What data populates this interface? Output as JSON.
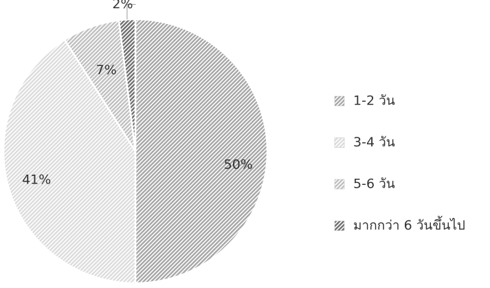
{
  "chart_data": {
    "type": "pie",
    "categories": [
      "1-2 วัน",
      "3-4 วัน",
      "5-6 วัน",
      "มากกว่า 6 วันขึ้นไป"
    ],
    "values": [
      50,
      41,
      7,
      2
    ],
    "value_labels": [
      "50%",
      "41%",
      "7%",
      "2%"
    ],
    "colors": [
      "#a6a6a6",
      "#dcdcdc",
      "#bfbfbf",
      "#6e6e6e"
    ],
    "legend": "right"
  }
}
